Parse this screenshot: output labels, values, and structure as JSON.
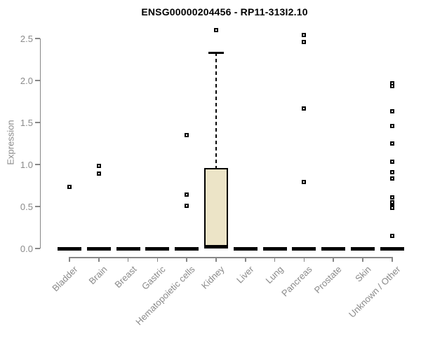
{
  "chart_data": {
    "type": "boxplot",
    "title": "ENSG00000204456 - RP11-313I2.10",
    "ylabel": "Expression",
    "xlabel": "",
    "ylim": [
      0,
      2.6
    ],
    "yticks": [
      0.0,
      0.5,
      1.0,
      1.5,
      2.0,
      2.5
    ],
    "grid": false,
    "legend": "none",
    "categories": [
      "Bladder",
      "Brain",
      "Breast",
      "Gastric",
      "Hematopoietic cells",
      "Kidney",
      "Liver",
      "Lung",
      "Pancreas",
      "Prostate",
      "Skin",
      "Unknown / Other"
    ],
    "series": [
      {
        "category": "Bladder",
        "median": 0,
        "q1": 0,
        "q3": 0,
        "whisker_low": 0,
        "whisker_high": 0,
        "outliers": [
          0.73
        ]
      },
      {
        "category": "Brain",
        "median": 0,
        "q1": 0,
        "q3": 0,
        "whisker_low": 0,
        "whisker_high": 0,
        "outliers": [
          0.98,
          0.89
        ]
      },
      {
        "category": "Breast",
        "median": 0,
        "q1": 0,
        "q3": 0,
        "whisker_low": 0,
        "whisker_high": 0,
        "outliers": []
      },
      {
        "category": "Gastric",
        "median": 0,
        "q1": 0,
        "q3": 0,
        "whisker_low": 0,
        "whisker_high": 0,
        "outliers": []
      },
      {
        "category": "Hematopoietic cells",
        "median": 0,
        "q1": 0,
        "q3": 0,
        "whisker_low": 0,
        "whisker_high": 0,
        "outliers": [
          1.35,
          0.64,
          0.51
        ]
      },
      {
        "category": "Kidney",
        "median": 0.02,
        "q1": 0.02,
        "q3": 0.96,
        "whisker_low": 0.02,
        "whisker_high": 2.33,
        "outliers": [
          2.6
        ]
      },
      {
        "category": "Liver",
        "median": 0,
        "q1": 0,
        "q3": 0,
        "whisker_low": 0,
        "whisker_high": 0,
        "outliers": []
      },
      {
        "category": "Lung",
        "median": 0,
        "q1": 0,
        "q3": 0,
        "whisker_low": 0,
        "whisker_high": 0,
        "outliers": []
      },
      {
        "category": "Pancreas",
        "median": 0,
        "q1": 0,
        "q3": 0,
        "whisker_low": 0,
        "whisker_high": 0,
        "outliers": [
          2.54,
          2.46,
          1.67,
          0.79
        ]
      },
      {
        "category": "Prostate",
        "median": 0,
        "q1": 0,
        "q3": 0,
        "whisker_low": 0,
        "whisker_high": 0,
        "outliers": []
      },
      {
        "category": "Skin",
        "median": 0,
        "q1": 0,
        "q3": 0,
        "whisker_low": 0,
        "whisker_high": 0,
        "outliers": []
      },
      {
        "category": "Unknown / Other",
        "median": 0,
        "q1": 0,
        "q3": 0,
        "whisker_low": 0,
        "whisker_high": 0,
        "outliers": [
          1.97,
          1.93,
          1.63,
          1.46,
          1.25,
          1.03,
          0.91,
          0.83,
          0.61,
          0.55,
          0.5,
          0.48,
          0.15
        ]
      }
    ],
    "colors": {
      "box_fill": "#ece4c7",
      "box_border": "#000000",
      "median": "#000000",
      "whisker": "#000000",
      "outlier": "#000000",
      "axis": "#878787",
      "tick_text": "#8a8a8a",
      "title": "#000000",
      "background": "#ffffff"
    }
  }
}
